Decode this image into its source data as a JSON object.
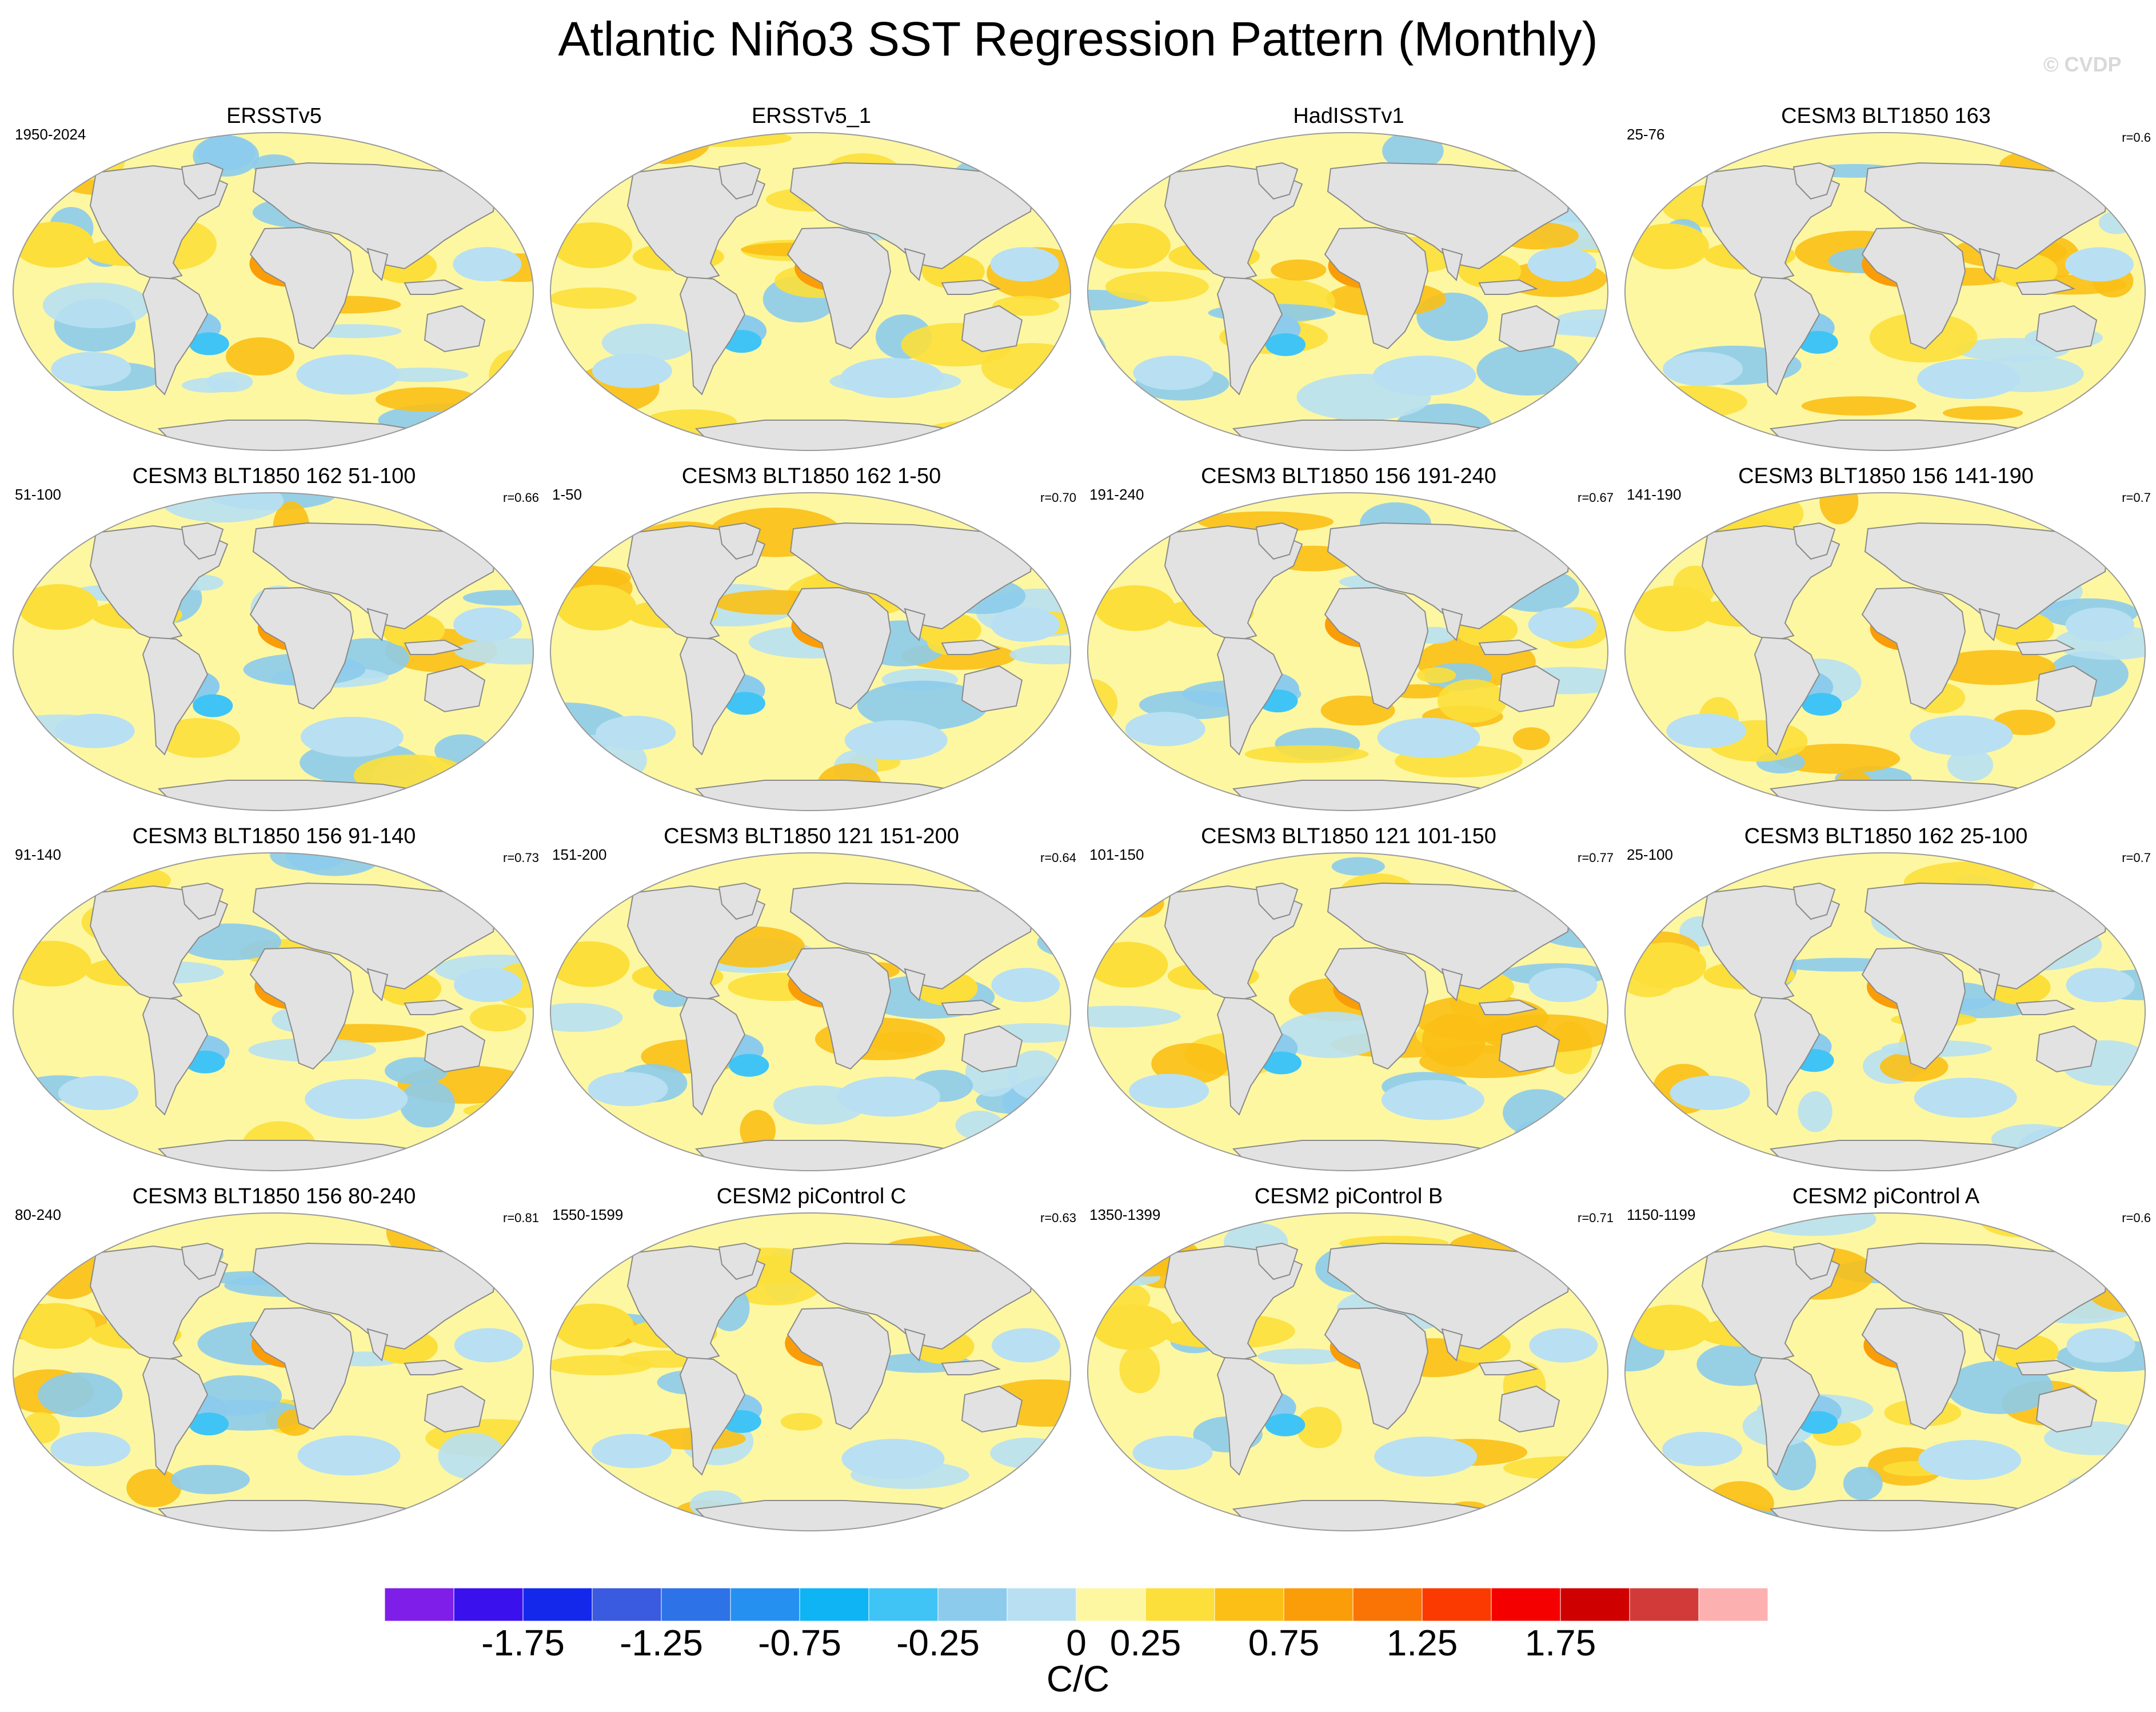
{
  "title": "Atlantic Niño3 SST Regression Pattern (Monthly)",
  "watermark": "© CVDP",
  "colors": {
    "land": "#e2e2e2",
    "coast": "#8a8a8a",
    "ocean_base": "#fdf7a2"
  },
  "panels": [
    {
      "title": "ERSSTv5",
      "left": "1950-2024",
      "right": ""
    },
    {
      "title": "ERSSTv5_1",
      "left": "",
      "right": ""
    },
    {
      "title": "HadISSTv1",
      "left": "",
      "right": ""
    },
    {
      "title": "CESM3 BLT1850 163",
      "left": "25-76",
      "right": "r=0.6"
    },
    {
      "title": "CESM3 BLT1850 162 51-100",
      "left": "51-100",
      "right": "r=0.66"
    },
    {
      "title": "CESM3 BLT1850 162 1-50",
      "left": "1-50",
      "right": "r=0.70"
    },
    {
      "title": "CESM3 BLT1850 156 191-240",
      "left": "191-240",
      "right": "r=0.67"
    },
    {
      "title": "CESM3 BLT1850 156 141-190",
      "left": "141-190",
      "right": "r=0.7"
    },
    {
      "title": "CESM3 BLT1850 156 91-140",
      "left": "91-140",
      "right": "r=0.73"
    },
    {
      "title": "CESM3 BLT1850 121 151-200",
      "left": "151-200",
      "right": "r=0.64"
    },
    {
      "title": "CESM3 BLT1850 121 101-150",
      "left": "101-150",
      "right": "r=0.77"
    },
    {
      "title": "CESM3 BLT1850 162 25-100",
      "left": "25-100",
      "right": "r=0.7"
    },
    {
      "title": "CESM3 BLT1850 156 80-240",
      "left": "80-240",
      "right": "r=0.81"
    },
    {
      "title": "CESM2 piControl C",
      "left": "1550-1599",
      "right": "r=0.63"
    },
    {
      "title": "CESM2 piControl B",
      "left": "1350-1399",
      "right": "r=0.71"
    },
    {
      "title": "CESM2 piControl A",
      "left": "1150-1199",
      "right": "r=0.6"
    }
  ],
  "colorbar": {
    "colors": [
      "#7f1ee8",
      "#3a10ec",
      "#1428ec",
      "#3a5ae0",
      "#2d72e6",
      "#2590f0",
      "#0fb4f5",
      "#40c4f5",
      "#8ccbec",
      "#b8e0f2",
      "#fdf7a2",
      "#fcdf3a",
      "#fbbf15",
      "#fa9d08",
      "#fa7405",
      "#fb3a02",
      "#f50000",
      "#cf0000",
      "#d23a3a",
      "#fdb0b0"
    ],
    "labels": [
      "-1.75",
      "-1.25",
      "-0.75",
      "-0.25",
      "0",
      "0.25",
      "0.75",
      "1.25",
      "1.75"
    ],
    "units": "C/C"
  }
}
